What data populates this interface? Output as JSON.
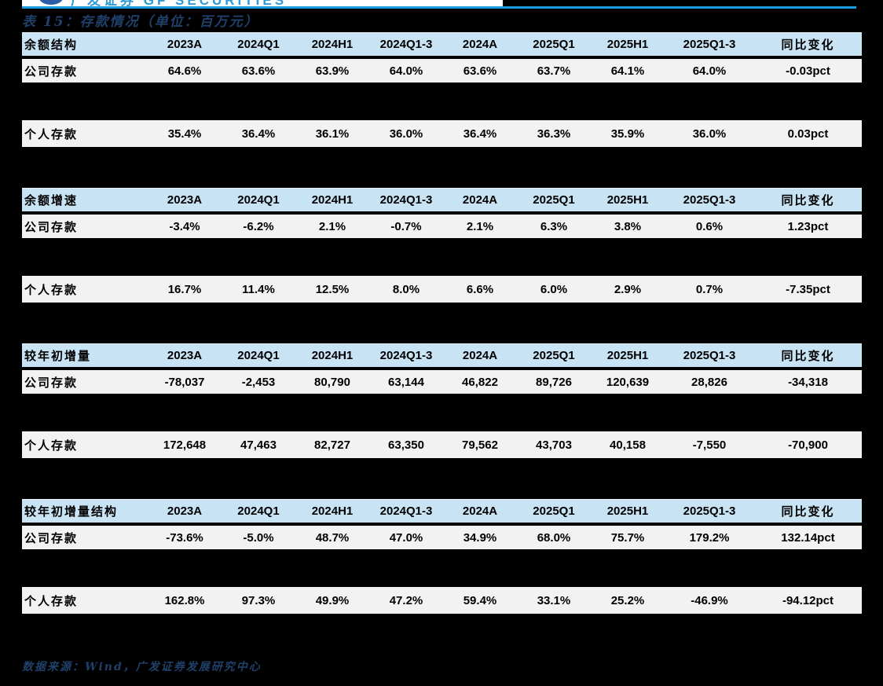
{
  "page": {
    "title": "表 15：存款情况（单位：百万元）",
    "source_note": "数据来源：Wind，广发证券发展研究中心",
    "logo_fragment_text": "广发证券 GF SECURITIES"
  },
  "colors": {
    "background": "#000000",
    "top_rule_blue": "#1b9be0",
    "header_row_blue": "#c8e3f3",
    "data_row_gray": "#f2f2f2",
    "title_navy": "#20406a",
    "table_text": "#000000"
  },
  "table": {
    "columns": [
      "2023A",
      "2024Q1",
      "2024H1",
      "2024Q1-3",
      "2024A",
      "2025Q1",
      "2025H1",
      "2025Q1-3",
      "同比变化"
    ],
    "sections": [
      {
        "header": "余额结构",
        "rows": [
          {
            "label": "公司存款",
            "values": [
              "64.6%",
              "63.6%",
              "63.9%",
              "64.0%",
              "63.6%",
              "63.7%",
              "64.1%",
              "64.0%",
              "-0.03pct"
            ]
          },
          {
            "label": "个人存款",
            "values": [
              "35.4%",
              "36.4%",
              "36.1%",
              "36.0%",
              "36.4%",
              "36.3%",
              "35.9%",
              "36.0%",
              "0.03pct"
            ]
          }
        ]
      },
      {
        "header": "余额增速",
        "rows": [
          {
            "label": "公司存款",
            "values": [
              "-3.4%",
              "-6.2%",
              "2.1%",
              "-0.7%",
              "2.1%",
              "6.3%",
              "3.8%",
              "0.6%",
              "1.23pct"
            ]
          },
          {
            "label": "个人存款",
            "values": [
              "16.7%",
              "11.4%",
              "12.5%",
              "8.0%",
              "6.6%",
              "6.0%",
              "2.9%",
              "0.7%",
              "-7.35pct"
            ]
          }
        ]
      },
      {
        "header": "较年初增量",
        "rows": [
          {
            "label": "公司存款",
            "values": [
              "-78,037",
              "-2,453",
              "80,790",
              "63,144",
              "46,822",
              "89,726",
              "120,639",
              "28,826",
              "-34,318"
            ]
          },
          {
            "label": "个人存款",
            "values": [
              "172,648",
              "47,463",
              "82,727",
              "63,350",
              "79,562",
              "43,703",
              "40,158",
              "-7,550",
              "-70,900"
            ]
          }
        ]
      },
      {
        "header": "较年初增量结构",
        "rows": [
          {
            "label": "公司存款",
            "values": [
              "-73.6%",
              "-5.0%",
              "48.7%",
              "47.0%",
              "34.9%",
              "68.0%",
              "75.7%",
              "179.2%",
              "132.14pct"
            ]
          },
          {
            "label": "个人存款",
            "values": [
              "162.8%",
              "97.3%",
              "49.9%",
              "47.2%",
              "59.4%",
              "33.1%",
              "25.2%",
              "-46.9%",
              "-94.12pct"
            ]
          }
        ]
      }
    ]
  }
}
